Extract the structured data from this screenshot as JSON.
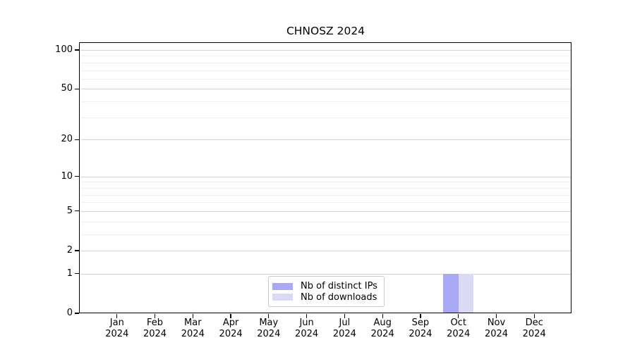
{
  "chart_data": {
    "type": "bar",
    "title": "CHNOSZ 2024",
    "categories": [
      "Jan",
      "Feb",
      "Mar",
      "Apr",
      "May",
      "Jun",
      "Jul",
      "Aug",
      "Sep",
      "Oct",
      "Nov",
      "Dec"
    ],
    "x_tick_second_line": "2024",
    "series": [
      {
        "name": "Nb of distinct IPs",
        "color": "#a8a8f5",
        "values": [
          0,
          0,
          0,
          0,
          0,
          0,
          0,
          0,
          0,
          1,
          0,
          0
        ]
      },
      {
        "name": "Nb of downloads",
        "color": "#dadaf7",
        "values": [
          0,
          0,
          0,
          0,
          0,
          0,
          0,
          0,
          0,
          1,
          0,
          0
        ]
      }
    ],
    "yaxis": {
      "scale": "log1p",
      "range": [
        0,
        100
      ],
      "major_ticks": [
        0,
        1,
        2,
        5,
        10,
        20,
        50,
        100
      ],
      "minor_gridlines": [
        3,
        4,
        6,
        7,
        8,
        9,
        30,
        40,
        60,
        70,
        80,
        90
      ]
    },
    "grid": true,
    "legend_position": "inside-bottom-center",
    "colors": {
      "major_grid": "#d2d2d2",
      "minor_grid": "#f0f0f0",
      "axis": "#000000"
    }
  },
  "legend": {
    "items": [
      {
        "label": "Nb of distinct IPs",
        "color": "#a8a8f5"
      },
      {
        "label": "Nb of downloads",
        "color": "#dadaf7"
      }
    ]
  }
}
